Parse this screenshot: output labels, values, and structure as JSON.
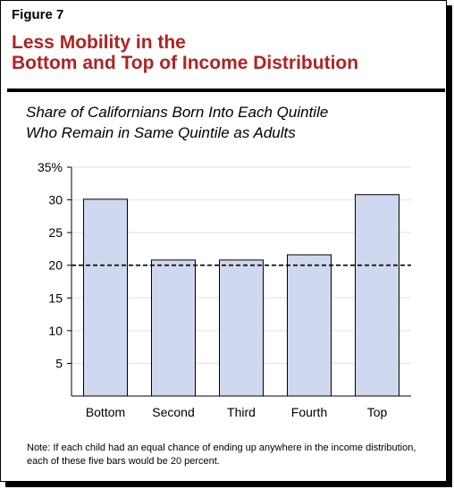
{
  "figure": {
    "label": "Figure 7",
    "title_line1": "Less Mobility in the",
    "title_line2": "Bottom and Top of Income Distribution",
    "title_color": "#b22222",
    "note": "Note: If each child had an equal chance of ending up anywhere in the income distribution, each of these five bars would be 20 percent."
  },
  "chart_data": {
    "type": "bar",
    "title": "",
    "subtitle_line1": "Share of Californians Born Into Each Quintile",
    "subtitle_line2": "Who Remain in Same Quintile as Adults",
    "xlabel": "",
    "ylabel": "",
    "categories": [
      "Bottom",
      "Second",
      "Third",
      "Fourth",
      "Top"
    ],
    "values": [
      30.1,
      20.8,
      20.8,
      21.6,
      30.8
    ],
    "ylim": [
      0,
      35
    ],
    "yticks": [
      5,
      10,
      15,
      20,
      25,
      30,
      35
    ],
    "ytick_labels": [
      "5",
      "10",
      "15",
      "20",
      "25",
      "30",
      "35%"
    ],
    "reference_line": {
      "value": 20,
      "style": "dashed"
    },
    "grid": true,
    "bar_color": "#cfd8ee",
    "bar_edge_color": "#000000",
    "grid_color": "#e0e0e0"
  }
}
